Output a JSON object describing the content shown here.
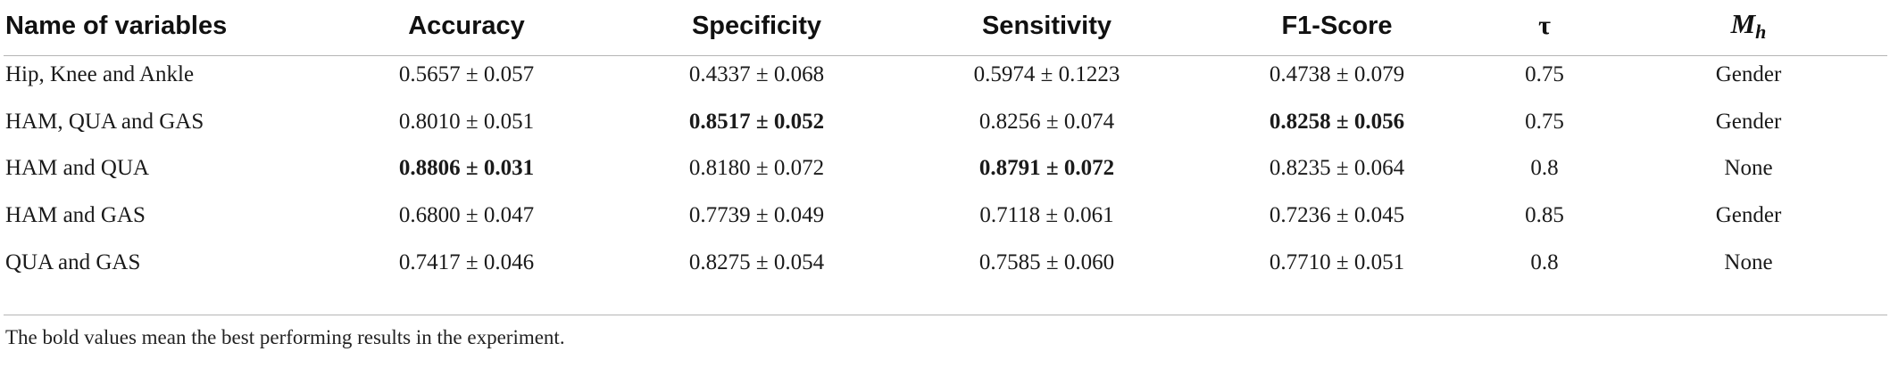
{
  "table": {
    "headers": {
      "name": "Name of variables",
      "accuracy": "Accuracy",
      "specificity": "Specificity",
      "sensitivity": "Sensitivity",
      "f1": "F1-Score",
      "tau": "τ",
      "mh_main": "M",
      "mh_sub": "h"
    },
    "rows": [
      {
        "name": "Hip, Knee and Ankle",
        "accuracy": "0.5657 ± 0.057",
        "specificity": "0.4337 ± 0.068",
        "sensitivity": "0.5974 ± 0.1223",
        "f1": "0.4738 ± 0.079",
        "tau": "0.75",
        "mh": "Gender"
      },
      {
        "name": "HAM, QUA and GAS",
        "accuracy": "0.8010 ± 0.051",
        "specificity": "0.8517 ± 0.052",
        "sensitivity": "0.8256 ± 0.074",
        "f1": "0.8258 ± 0.056",
        "tau": "0.75",
        "mh": "Gender"
      },
      {
        "name": "HAM and QUA",
        "accuracy": "0.8806 ± 0.031",
        "specificity": "0.8180 ± 0.072",
        "sensitivity": "0.8791 ± 0.072",
        "f1": "0.8235 ± 0.064",
        "tau": "0.8",
        "mh": "None"
      },
      {
        "name": "HAM and GAS",
        "accuracy": "0.6800 ± 0.047",
        "specificity": "0.7739 ± 0.049",
        "sensitivity": "0.7118 ± 0.061",
        "f1": "0.7236 ± 0.045",
        "tau": "0.85",
        "mh": "Gender"
      },
      {
        "name": "QUA and GAS",
        "accuracy": "0.7417 ± 0.046",
        "specificity": "0.8275 ± 0.054",
        "sensitivity": "0.7585 ± 0.060",
        "f1": "0.7710 ± 0.051",
        "tau": "0.8",
        "mh": "None"
      }
    ]
  },
  "footnote": "The bold values mean the best performing results in the experiment."
}
